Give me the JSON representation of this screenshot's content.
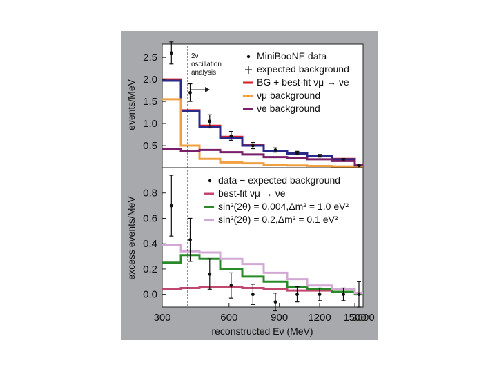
{
  "figure": {
    "colors": {
      "panel_bg": "#a7a9ac",
      "plot_bg": "#ffffff",
      "axis": "#222222",
      "data_marker": "#111111",
      "bg_bestfit": "#d0202a",
      "numu_bg": "#f0a040",
      "nue_bg": "#7a1f6a",
      "bestfit": "#c2476e",
      "sin_004": "#2a8a2a",
      "sin_02": "#d4a8d4",
      "blue": "#2a2a8a"
    }
  },
  "chart_data": [
    {
      "id": "top",
      "type": "line",
      "ylabel": "events/MeV",
      "ylim": [
        0,
        2.8
      ],
      "yticks": [
        "0.5",
        "1.0",
        "1.5",
        "2.0",
        "2.5"
      ],
      "annotation": [
        "2ν",
        "oscillation",
        "analysis"
      ],
      "bin_edges": [
        300,
        375,
        475,
        550,
        675,
        800,
        950,
        1100,
        1300,
        1500,
        3000
      ],
      "legend": [
        {
          "label": "MiniBooNE data",
          "symbol": "dot"
        },
        {
          "label": "expected background",
          "symbol": "plus"
        },
        {
          "label": "BG + best-fit νμ → νe",
          "symbol": "line",
          "color": "#d0202a"
        },
        {
          "label": "νμ background",
          "symbol": "line",
          "color": "#f0a040"
        },
        {
          "label": "νe background",
          "symbol": "line",
          "color": "#7a1f6a"
        }
      ],
      "series": [
        {
          "name": "BG + best-fit νμ → νe",
          "color": "#d0202a",
          "values": [
            2.0,
            1.3,
            0.95,
            0.7,
            0.52,
            0.38,
            0.33,
            0.27,
            0.2,
            0.05
          ]
        },
        {
          "color": "#2a2a8a",
          "values": [
            1.97,
            1.28,
            0.93,
            0.68,
            0.5,
            0.37,
            0.32,
            0.26,
            0.19,
            0.05
          ]
        },
        {
          "name": "νμ background",
          "color": "#f0a040",
          "values": [
            1.55,
            0.5,
            0.2,
            0.12,
            0.1,
            0.06,
            0.05,
            0.04,
            0.03,
            0.02
          ]
        },
        {
          "name": "νe background",
          "color": "#7a1f6a",
          "values": [
            0.42,
            0.38,
            0.4,
            0.35,
            0.3,
            0.24,
            0.22,
            0.19,
            0.15,
            0.05
          ]
        }
      ],
      "points": [
        {
          "x": 337,
          "y": 2.6,
          "err": 0.25
        },
        {
          "x": 425,
          "y": 1.7,
          "err": 0.2
        },
        {
          "x": 512,
          "y": 1.05,
          "err": 0.15
        },
        {
          "x": 612,
          "y": 0.72,
          "err": 0.1
        },
        {
          "x": 737,
          "y": 0.5,
          "err": 0.07
        },
        {
          "x": 875,
          "y": 0.4,
          "err": 0.05
        },
        {
          "x": 1025,
          "y": 0.33,
          "err": 0.04
        },
        {
          "x": 1200,
          "y": 0.27,
          "err": 0.03
        },
        {
          "x": 1400,
          "y": 0.18,
          "err": 0.03
        },
        {
          "x": 2250,
          "y": 0.05,
          "err": 0.01
        }
      ]
    },
    {
      "id": "bottom",
      "type": "line",
      "ylabel": "excess events/MeV",
      "ylim": [
        -0.1,
        1.0
      ],
      "yticks": [
        "0.0",
        "0.2",
        "0.4",
        "0.6",
        "0.8"
      ],
      "xlabel": "reconstructed Eν (MeV)",
      "xticks": [
        "300",
        "600",
        "900",
        "1200",
        "1500",
        "3000"
      ],
      "bin_edges": [
        300,
        375,
        475,
        550,
        675,
        800,
        950,
        1100,
        1300,
        1500,
        3000
      ],
      "legend": [
        {
          "label": "data − expected background",
          "symbol": "dot"
        },
        {
          "label": "best-fit νμ → νe",
          "symbol": "line",
          "color": "#c2476e"
        },
        {
          "label": "sin²(2θ) = 0.004,Δm² = 1.0 eV²",
          "symbol": "line",
          "color": "#2a8a2a"
        },
        {
          "label": "sin²(2θ) = 0.2,Δm² = 0.1 eV²",
          "symbol": "line",
          "color": "#d4a8d4"
        }
      ],
      "series": [
        {
          "name": "best-fit νμ → νe",
          "color": "#c2476e",
          "values": [
            0.04,
            0.05,
            0.06,
            0.06,
            0.05,
            0.04,
            0.03,
            0.03,
            0.02,
            0.01
          ]
        },
        {
          "name": "sin²(2θ) = 0.004,Δm² = 1.0 eV²",
          "color": "#2a8a2a",
          "values": [
            0.25,
            0.31,
            0.28,
            0.2,
            0.14,
            0.1,
            0.06,
            0.04,
            0.02,
            0.0
          ]
        },
        {
          "name": "sin²(2θ) = 0.2,Δm² = 0.1 eV²",
          "color": "#d4a8d4",
          "values": [
            0.39,
            0.34,
            0.33,
            0.28,
            0.24,
            0.17,
            0.12,
            0.07,
            0.04,
            0.01
          ]
        }
      ],
      "points": [
        {
          "x": 337,
          "y": 0.7,
          "err": 0.24
        },
        {
          "x": 425,
          "y": 0.43,
          "err": 0.17
        },
        {
          "x": 512,
          "y": 0.16,
          "err": 0.12
        },
        {
          "x": 612,
          "y": 0.07,
          "err": 0.1
        },
        {
          "x": 737,
          "y": 0.0,
          "err": 0.08
        },
        {
          "x": 875,
          "y": -0.06,
          "err": 0.07
        },
        {
          "x": 1025,
          "y": 0.0,
          "err": 0.06
        },
        {
          "x": 1200,
          "y": 0.0,
          "err": 0.05
        },
        {
          "x": 1400,
          "y": 0.0,
          "err": 0.05
        },
        {
          "x": 2250,
          "y": 0.0,
          "err": 0.1
        }
      ]
    }
  ]
}
